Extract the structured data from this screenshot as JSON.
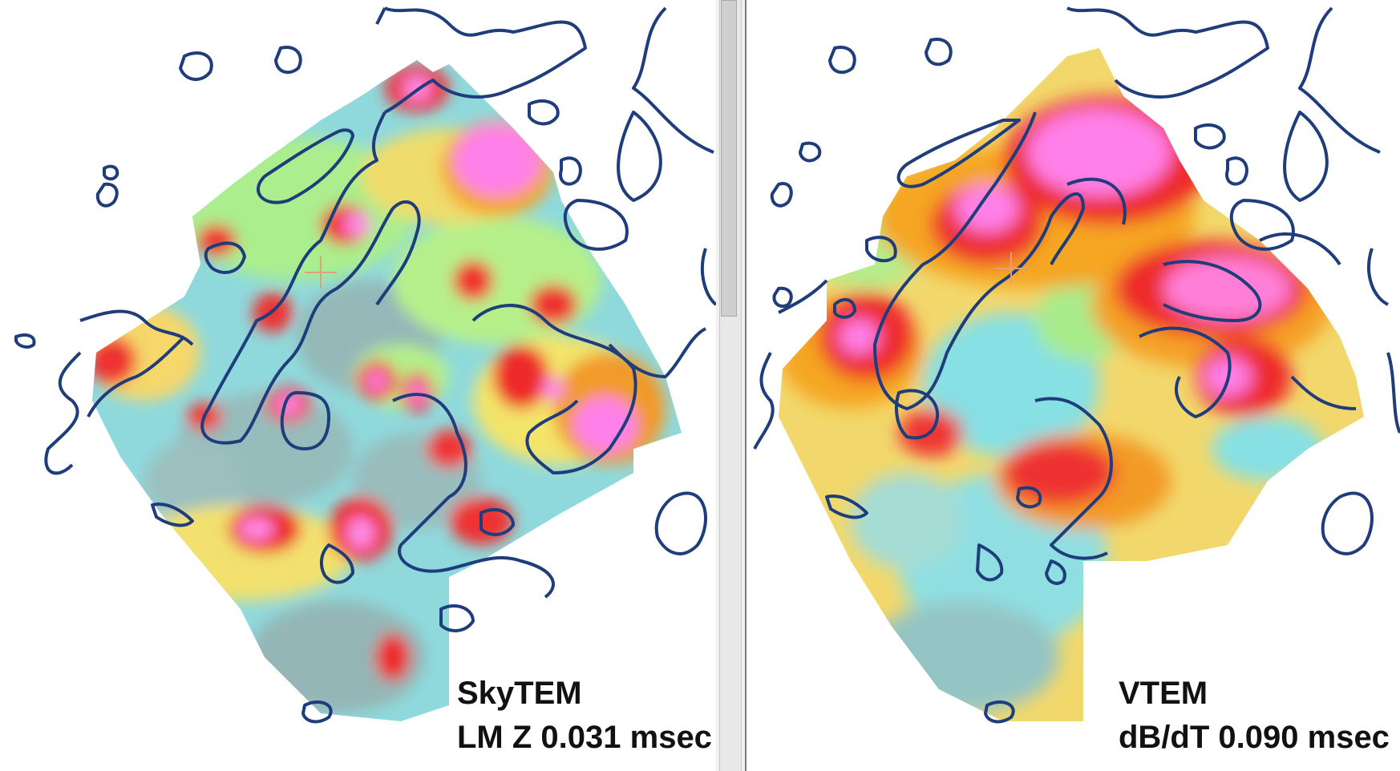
{
  "panels": {
    "left": {
      "title": "SkyTEM",
      "subtitle": "LM Z 0.031 msec"
    },
    "right": {
      "title": "VTEM",
      "subtitle": "dB/dT 0.090 msec"
    }
  },
  "colors": {
    "outline": "#1f3d7a",
    "low": "#8fb7b8",
    "cyan": "#7fe3e8",
    "green": "#a8ec8c",
    "yellow": "#f5e96a",
    "orange": "#f5a623",
    "red": "#ee2a2a",
    "pink": "#ff7fe6"
  }
}
